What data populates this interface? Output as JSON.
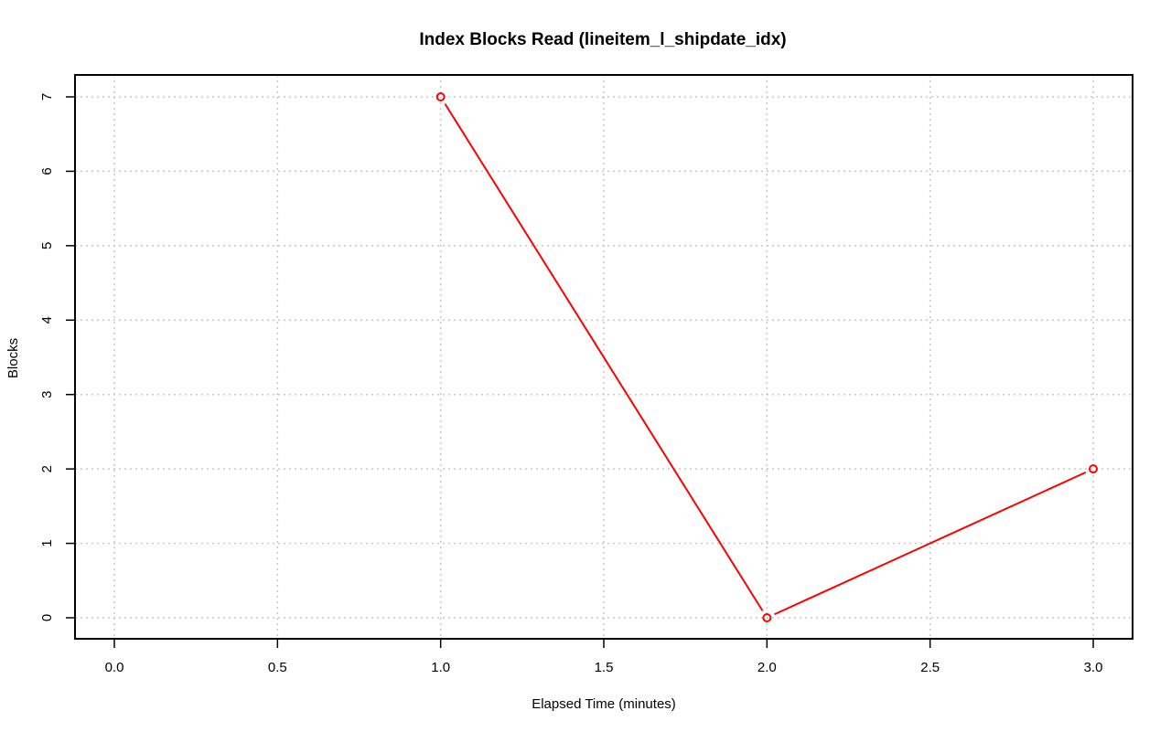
{
  "chart_data": {
    "type": "line",
    "title": "Index Blocks Read (lineitem_l_shipdate_idx)",
    "xlabel": "Elapsed Time (minutes)",
    "ylabel": "Blocks",
    "xlim": [
      0.0,
      3.0
    ],
    "ylim": [
      0,
      7
    ],
    "x_ticks": [
      "0.0",
      "0.5",
      "1.0",
      "1.5",
      "2.0",
      "2.5",
      "3.0"
    ],
    "y_ticks": [
      "0",
      "1",
      "2",
      "3",
      "4",
      "5",
      "6",
      "7"
    ],
    "grid": true,
    "legend": "none",
    "series": [
      {
        "x": [
          1.0,
          2.0,
          3.0
        ],
        "y": [
          7,
          0,
          2
        ],
        "color": "#ff0000",
        "marker": "open-circle"
      }
    ]
  }
}
